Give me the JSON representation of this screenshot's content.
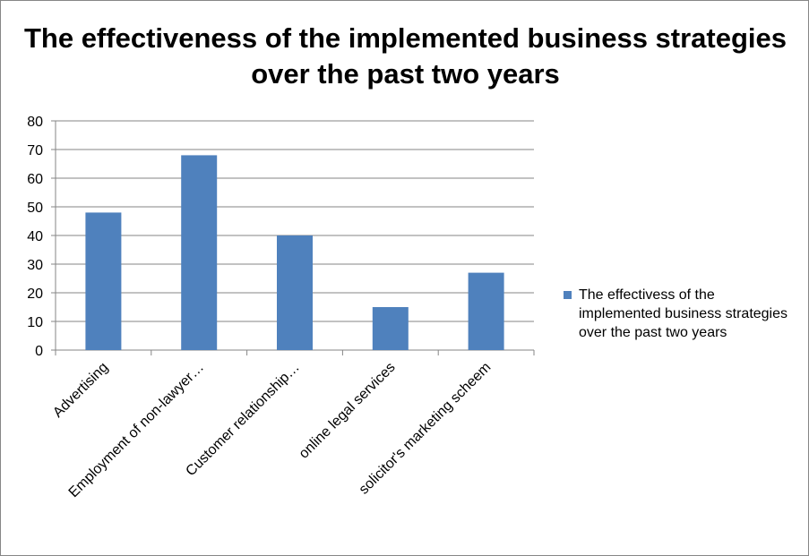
{
  "chart_data": {
    "type": "bar",
    "title": "The effectiveness of the implemented business strategies over the past two years",
    "categories": [
      "Advertising",
      "Employment of non-lawyer…",
      "Customer relationship…",
      "online legal services",
      "solicitor's marketing scheem"
    ],
    "series": [
      {
        "name": "The effectivess of the implemented business strategies over the past two years",
        "values": [
          48,
          68,
          40,
          15,
          27
        ],
        "color": "#4f81bd"
      }
    ],
    "xlabel": "",
    "ylabel": "",
    "ylim": [
      0,
      80
    ],
    "yticks": [
      0,
      10,
      20,
      30,
      40,
      50,
      60,
      70,
      80
    ],
    "grid": true,
    "legend": "right"
  }
}
